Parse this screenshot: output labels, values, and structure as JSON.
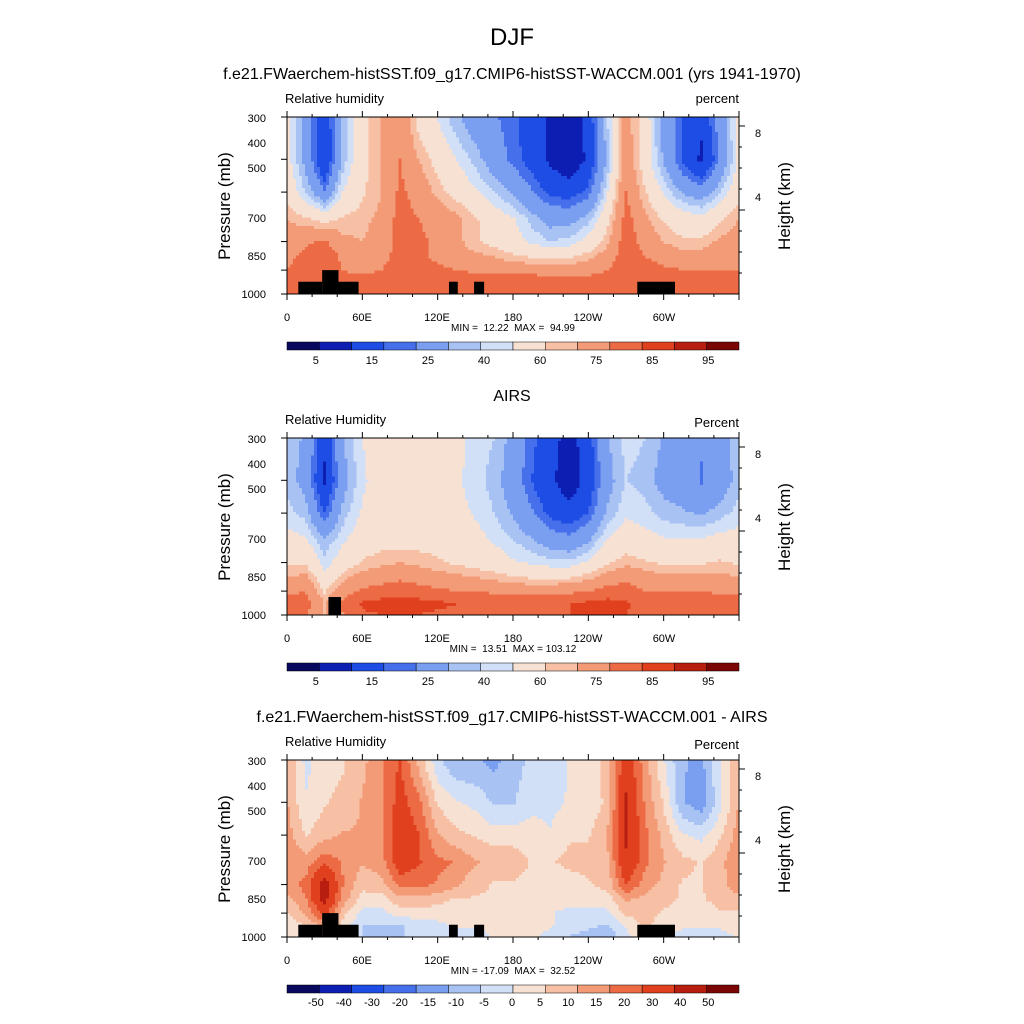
{
  "season": "DJF",
  "chart_data": [
    {
      "type": "heatmap",
      "title": "f.e21.FWaerchem-histSST.f09_g17.CMIP6-histSST-WACCM.001 (yrs 1941-1970)",
      "left_label": "Relative humidity",
      "right_label": "percent",
      "ylabel": "Pressure (mb)",
      "ylabel_right": "Height (km)",
      "x_ticks": [
        "0",
        "60E",
        "120E",
        "180",
        "120W",
        "60W"
      ],
      "y_ticks": [
        "300",
        "400",
        "500",
        "700",
        "850",
        "1000"
      ],
      "y_right_ticks": [
        "8",
        "4"
      ],
      "min_max": "MIN =  12.22  MAX =  94.99",
      "stats": {
        "min": 12.22,
        "max": 94.99
      },
      "colorbar_labels": [
        "5",
        "15",
        "25",
        "40",
        "60",
        "75",
        "85",
        "95"
      ],
      "field": {
        "lon": [
          0,
          15,
          30,
          45,
          60,
          75,
          90,
          105,
          120,
          135,
          150,
          165,
          180,
          195,
          210,
          225,
          240,
          255,
          270,
          285,
          300,
          315,
          330,
          345,
          360
        ],
        "pressure": [
          300,
          400,
          500,
          600,
          700,
          775,
          850,
          925,
          1000
        ],
        "values": [
          [
            58,
            42,
            22,
            48,
            62,
            70,
            78,
            62,
            55,
            46,
            40,
            36,
            32,
            26,
            18,
            14,
            24,
            50,
            74,
            60,
            42,
            30,
            22,
            40,
            58
          ],
          [
            58,
            42,
            20,
            48,
            62,
            70,
            80,
            70,
            62,
            55,
            48,
            40,
            33,
            26,
            18,
            12,
            22,
            46,
            76,
            60,
            44,
            28,
            18,
            36,
            58
          ],
          [
            62,
            50,
            36,
            56,
            64,
            70,
            82,
            76,
            68,
            62,
            56,
            50,
            44,
            36,
            28,
            26,
            32,
            54,
            80,
            66,
            54,
            44,
            40,
            50,
            62
          ],
          [
            70,
            66,
            62,
            66,
            68,
            72,
            84,
            80,
            76,
            72,
            66,
            60,
            56,
            48,
            42,
            42,
            48,
            62,
            84,
            72,
            64,
            60,
            58,
            64,
            70
          ],
          [
            74,
            78,
            82,
            72,
            70,
            74,
            84,
            82,
            78,
            72,
            66,
            62,
            58,
            54,
            50,
            52,
            58,
            68,
            86,
            76,
            70,
            66,
            66,
            72,
            74
          ],
          [
            76,
            84,
            86,
            78,
            74,
            76,
            84,
            82,
            78,
            74,
            72,
            70,
            66,
            64,
            62,
            64,
            68,
            74,
            86,
            80,
            76,
            74,
            74,
            76,
            76
          ],
          [
            80,
            88,
            84,
            80,
            78,
            80,
            86,
            84,
            82,
            80,
            78,
            78,
            76,
            76,
            74,
            74,
            76,
            80,
            88,
            84,
            82,
            80,
            80,
            80,
            80
          ],
          [
            84,
            86,
            80,
            82,
            84,
            86,
            88,
            88,
            88,
            88,
            88,
            88,
            88,
            88,
            86,
            86,
            86,
            86,
            90,
            88,
            86,
            86,
            86,
            84,
            84
          ],
          [
            80,
            82,
            78,
            80,
            80,
            82,
            84,
            84,
            84,
            84,
            84,
            84,
            84,
            84,
            84,
            82,
            82,
            82,
            86,
            84,
            82,
            82,
            82,
            80,
            80
          ]
        ]
      },
      "scale": "rh"
    },
    {
      "type": "heatmap",
      "title": "AIRS",
      "left_label": "Relative Humidity",
      "right_label": "Percent",
      "ylabel": "Pressure (mb)",
      "ylabel_right": "Height (km)",
      "x_ticks": [
        "0",
        "60E",
        "120E",
        "180",
        "120W",
        "60W"
      ],
      "y_ticks": [
        "300",
        "400",
        "500",
        "700",
        "850",
        "1000"
      ],
      "y_right_ticks": [
        "8",
        "4"
      ],
      "min_max": "MIN =  13.51  MAX = 103.12",
      "stats": {
        "min": 13.51,
        "max": 103.12
      },
      "colorbar_labels": [
        "5",
        "15",
        "25",
        "40",
        "60",
        "75",
        "85",
        "95"
      ],
      "field": {
        "lon": [
          0,
          15,
          30,
          45,
          60,
          75,
          90,
          105,
          120,
          135,
          150,
          165,
          180,
          195,
          210,
          225,
          240,
          255,
          270,
          285,
          300,
          315,
          330,
          345,
          360
        ],
        "pressure": [
          300,
          400,
          500,
          600,
          700,
          775,
          850,
          925,
          1000
        ],
        "values": [
          [
            48,
            44,
            22,
            45,
            55,
            58,
            60,
            56,
            62,
            58,
            52,
            50,
            42,
            32,
            24,
            16,
            26,
            44,
            52,
            50,
            44,
            42,
            36,
            42,
            48
          ],
          [
            48,
            42,
            18,
            42,
            54,
            58,
            58,
            56,
            60,
            56,
            52,
            48,
            40,
            30,
            22,
            14,
            24,
            42,
            50,
            48,
            42,
            40,
            34,
            40,
            48
          ],
          [
            52,
            48,
            30,
            48,
            56,
            58,
            60,
            58,
            60,
            58,
            54,
            50,
            44,
            36,
            28,
            24,
            30,
            46,
            54,
            52,
            48,
            46,
            44,
            48,
            52
          ],
          [
            58,
            56,
            46,
            54,
            60,
            62,
            62,
            62,
            62,
            60,
            58,
            54,
            50,
            46,
            40,
            38,
            44,
            56,
            60,
            58,
            56,
            56,
            56,
            58,
            58
          ],
          [
            64,
            64,
            52,
            60,
            66,
            68,
            70,
            68,
            66,
            64,
            62,
            60,
            56,
            54,
            52,
            52,
            56,
            64,
            68,
            66,
            64,
            64,
            64,
            66,
            64
          ],
          [
            70,
            72,
            58,
            68,
            74,
            76,
            78,
            76,
            74,
            72,
            70,
            68,
            66,
            64,
            64,
            64,
            68,
            74,
            78,
            74,
            72,
            72,
            72,
            72,
            70
          ],
          [
            78,
            80,
            64,
            76,
            82,
            84,
            86,
            84,
            82,
            80,
            80,
            78,
            76,
            76,
            76,
            78,
            80,
            84,
            84,
            80,
            80,
            80,
            80,
            78,
            78
          ],
          [
            84,
            84,
            70,
            82,
            92,
            94,
            96,
            94,
            92,
            90,
            90,
            90,
            88,
            88,
            88,
            90,
            92,
            94,
            92,
            84,
            86,
            88,
            88,
            86,
            84
          ],
          [
            82,
            82,
            68,
            80,
            88,
            90,
            92,
            90,
            88,
            88,
            88,
            86,
            86,
            86,
            88,
            90,
            92,
            94,
            90,
            82,
            84,
            86,
            86,
            84,
            82
          ]
        ]
      },
      "scale": "rh"
    },
    {
      "type": "heatmap",
      "title": "f.e21.FWaerchem-histSST.f09_g17.CMIP6-histSST-WACCM.001 - AIRS",
      "left_label": "Relative Humidity",
      "right_label": "Percent",
      "ylabel": "Pressure (mb)",
      "ylabel_right": "Height (km)",
      "x_ticks": [
        "0",
        "60E",
        "120E",
        "180",
        "120W",
        "60W"
      ],
      "y_ticks": [
        "300",
        "400",
        "500",
        "700",
        "850",
        "1000"
      ],
      "y_right_ticks": [
        "8",
        "4"
      ],
      "min_max": "MIN = -17.09  MAX =  32.52",
      "stats": {
        "min": -17.09,
        "max": 32.52
      },
      "colorbar_labels": [
        "-50",
        "-40",
        "-30",
        "-20",
        "-15",
        "-10",
        "-5",
        "0",
        "5",
        "10",
        "15",
        "20",
        "30",
        "40",
        "50"
      ],
      "field": {
        "lon": [
          0,
          15,
          30,
          45,
          60,
          75,
          90,
          105,
          120,
          135,
          150,
          165,
          180,
          195,
          210,
          225,
          240,
          255,
          270,
          285,
          300,
          315,
          330,
          345,
          360
        ],
        "pressure": [
          300,
          400,
          500,
          600,
          700,
          775,
          850,
          925,
          1000
        ],
        "values": [
          [
            8,
            -4,
            0,
            2,
            6,
            12,
            18,
            6,
            -6,
            -12,
            -12,
            -14,
            -10,
            -6,
            -6,
            -2,
            -2,
            6,
            22,
            10,
            -2,
            -12,
            -14,
            -2,
            8
          ],
          [
            8,
            -2,
            2,
            4,
            8,
            12,
            20,
            14,
            2,
            -2,
            -4,
            -8,
            -8,
            -4,
            -4,
            -2,
            -2,
            4,
            26,
            12,
            2,
            -12,
            -16,
            -4,
            8
          ],
          [
            10,
            2,
            6,
            8,
            8,
            12,
            22,
            18,
            8,
            4,
            2,
            0,
            0,
            0,
            -2,
            2,
            2,
            8,
            26,
            14,
            6,
            -2,
            -4,
            2,
            10
          ],
          [
            12,
            10,
            16,
            12,
            8,
            10,
            22,
            18,
            14,
            12,
            8,
            6,
            6,
            2,
            2,
            4,
            4,
            6,
            24,
            14,
            8,
            4,
            2,
            6,
            12
          ],
          [
            10,
            14,
            30,
            12,
            4,
            6,
            14,
            14,
            12,
            8,
            4,
            2,
            2,
            0,
            -2,
            0,
            2,
            4,
            18,
            10,
            6,
            2,
            2,
            6,
            10
          ],
          [
            6,
            12,
            28,
            10,
            0,
            0,
            6,
            6,
            4,
            2,
            2,
            2,
            0,
            0,
            -2,
            0,
            0,
            0,
            8,
            6,
            4,
            2,
            2,
            4,
            6
          ],
          [
            2,
            8,
            20,
            4,
            -4,
            -4,
            0,
            0,
            0,
            0,
            -2,
            0,
            0,
            0,
            -2,
            -4,
            -4,
            -4,
            4,
            4,
            2,
            0,
            0,
            2,
            2
          ],
          [
            0,
            2,
            10,
            0,
            -8,
            -8,
            -8,
            -6,
            -4,
            -2,
            -2,
            -2,
            0,
            0,
            -2,
            -4,
            -6,
            -8,
            -2,
            4,
            0,
            -2,
            -2,
            -2,
            0
          ],
          [
            -2,
            0,
            10,
            0,
            -8,
            -8,
            -8,
            -6,
            -4,
            -4,
            -4,
            -2,
            -2,
            -2,
            -4,
            -8,
            -10,
            -12,
            -4,
            2,
            -2,
            -4,
            -4,
            -4,
            -2
          ]
        ]
      },
      "scale": "diff"
    }
  ],
  "colors": {
    "rh_levels": [
      10,
      20,
      30,
      35,
      45,
      50,
      55,
      65,
      70,
      80,
      90
    ],
    "diff_levels": [
      -45,
      -35,
      -25,
      -17.5,
      -12.5,
      -7.5,
      -2.5,
      2.5,
      7.5,
      12.5,
      17.5,
      25,
      35,
      45
    ],
    "palette_rh": [
      "#08085e",
      "#0d1fb3",
      "#1e4de6",
      "#4670eb",
      "#7a9ef0",
      "#a9c2f4",
      "#d2e0f7",
      "#f7e1d3",
      "#f7c0a5",
      "#f39a76",
      "#ec6a44",
      "#e0401e",
      "#b81e10",
      "#7a0505"
    ],
    "palette_diff": [
      "#08085e",
      "#0d1fb3",
      "#1e4de6",
      "#4670eb",
      "#7a9ef0",
      "#a9c2f4",
      "#d2e0f7",
      "#f7e1d3",
      "#f7c0a5",
      "#f39a76",
      "#ec6a44",
      "#e0401e",
      "#b81e10",
      "#7a0505"
    ]
  }
}
